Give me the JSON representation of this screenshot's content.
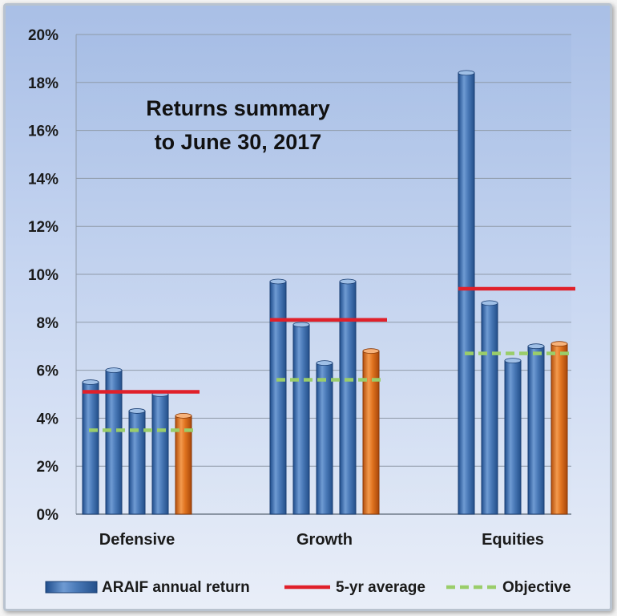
{
  "chart_data": {
    "type": "bar",
    "title": "Returns summary",
    "subtitle": "to June 30, 2017",
    "categories": [
      "Defensive",
      "Growth",
      "Equities"
    ],
    "ylim": [
      0,
      20
    ],
    "yticks": [
      0,
      2,
      4,
      6,
      8,
      10,
      12,
      14,
      16,
      18,
      20
    ],
    "ytick_labels": [
      "0%",
      "2%",
      "4%",
      "6%",
      "8%",
      "10%",
      "12%",
      "14%",
      "16%",
      "18%",
      "20%"
    ],
    "grid": true,
    "legend_position": "bottom",
    "series": [
      {
        "name": "ARAIF annual return",
        "type": "bar",
        "color": "#4a7ab8",
        "highlight_color": "#e0731f",
        "values": [
          [
            5.5,
            6.0,
            4.3,
            5.0,
            4.1
          ],
          [
            9.7,
            7.9,
            6.3,
            9.7,
            6.8
          ],
          [
            18.4,
            8.8,
            6.4,
            7.0,
            7.1
          ]
        ]
      },
      {
        "name": "5-yr average",
        "type": "line",
        "color": "#e0202a",
        "values": [
          5.1,
          8.1,
          9.4
        ]
      },
      {
        "name": "Objective",
        "type": "dashed-line",
        "color": "#9acd6a",
        "values": [
          3.5,
          5.6,
          6.7
        ]
      }
    ]
  }
}
